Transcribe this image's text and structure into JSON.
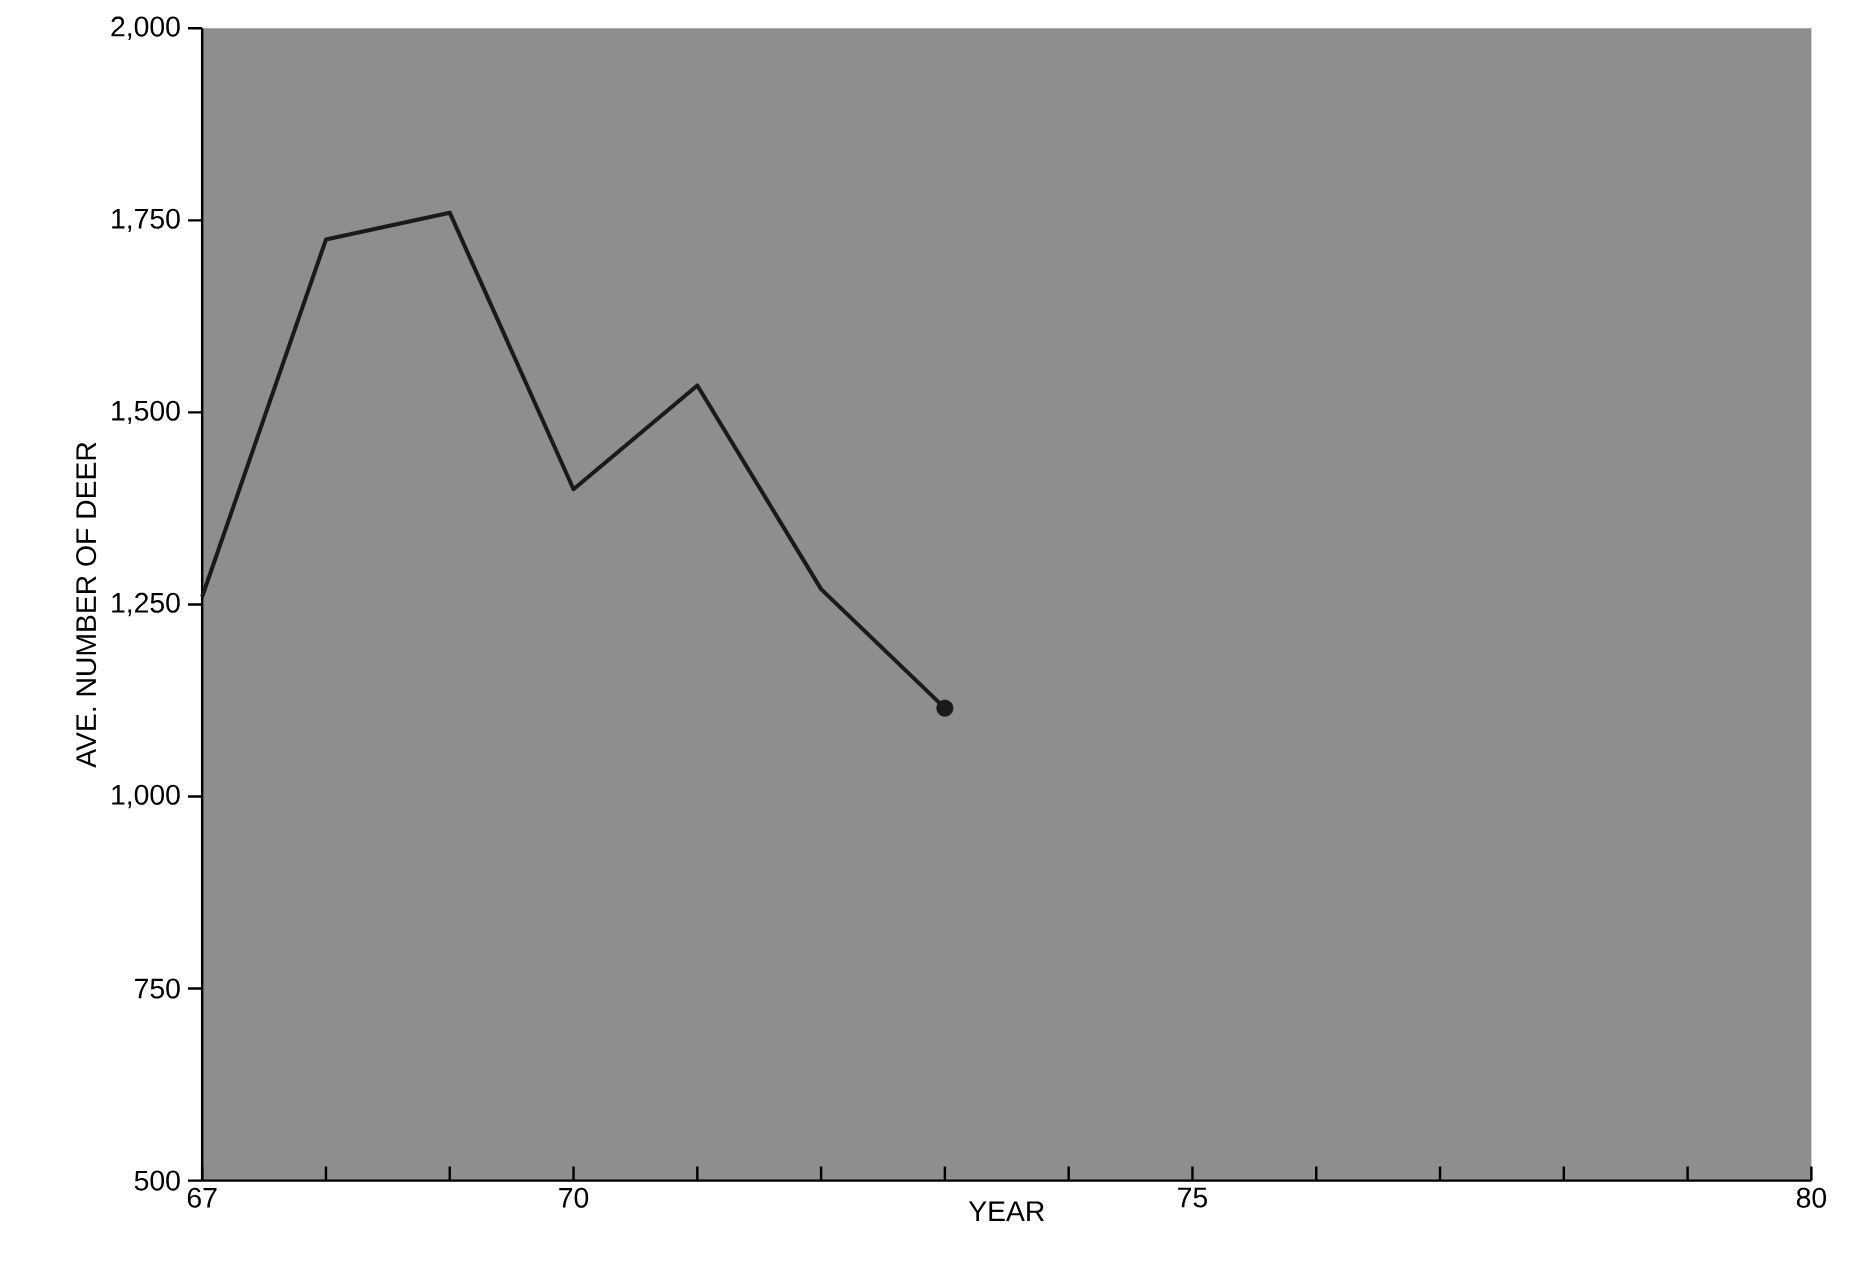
{
  "chart_data": {
    "type": "line",
    "xlabel": "YEAR",
    "ylabel": "AVE. NUMBER OF DEER",
    "x": [
      67,
      68,
      69,
      70,
      71,
      72,
      73
    ],
    "series": [
      {
        "color": "#1a1a1a",
        "values": [
          1260,
          1725,
          1760,
          1400,
          1535,
          1270,
          1115
        ]
      },
      {
        "type": "scatter",
        "color": "#1a1a1a",
        "x": [
          73
        ],
        "values": [
          1115
        ]
      }
    ],
    "xlim": [
      67,
      80
    ],
    "ylim": [
      500,
      2000
    ],
    "xticks": [
      67,
      {
        "value": 68,
        "label": null
      },
      {
        "value": 69,
        "label": null
      },
      70,
      {
        "value": 71,
        "label": null
      },
      {
        "value": 72,
        "label": null
      },
      {
        "value": 73,
        "label": null
      },
      {
        "value": 74,
        "label": null
      },
      75,
      {
        "value": 76,
        "label": null
      },
      {
        "value": 77,
        "label": null
      },
      {
        "value": 78,
        "label": null
      },
      {
        "value": 79,
        "label": null
      },
      80
    ],
    "yticks": [
      {
        "value": 500,
        "label": "500"
      },
      {
        "value": 750,
        "label": "750"
      },
      {
        "value": 1000,
        "label": "1,000"
      },
      {
        "value": 1250,
        "label": "1,250"
      },
      {
        "value": 1500,
        "label": "1,500"
      },
      {
        "value": 1750,
        "label": "1,750"
      },
      {
        "value": 2000,
        "label": "2,000"
      }
    ],
    "grid": false,
    "line_style": "solid"
  }
}
